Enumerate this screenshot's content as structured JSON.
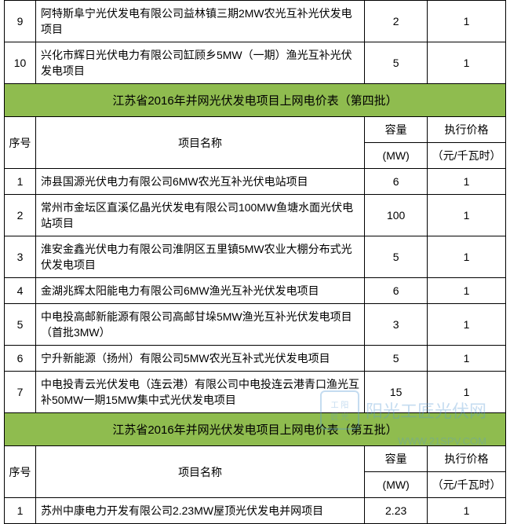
{
  "prev_rows": [
    {
      "seq": "9",
      "name": "阿特斯阜宁光伏发电有限公司益林镇三期2MW农光互补光伏发电项目",
      "cap": "2",
      "price": "1"
    },
    {
      "seq": "10",
      "name": "兴化市辉日光伏电力有限公司缸顾乡5MW（一期）渔光互补光伏发电项目",
      "cap": "5",
      "price": "1"
    }
  ],
  "section4": {
    "title": "江苏省2016年并网光伏发电项目上网电价表（第四批）",
    "headers": {
      "seq": "序号",
      "name": "项目名称",
      "cap1": "容量",
      "cap2": "(MW)",
      "price1": "执行价格",
      "price2": "（元/千瓦时）"
    },
    "rows": [
      {
        "seq": "1",
        "name": "沛县国源光伏电力有限公司6MW农光互补光伏电站项目",
        "cap": "6",
        "price": "1"
      },
      {
        "seq": "2",
        "name": "常州市金坛区直溪亿晶光伏发电有限公司100MW鱼塘水面光伏电站项目",
        "cap": "100",
        "price": "1"
      },
      {
        "seq": "3",
        "name": "淮安金鑫光伏电力有限公司淮阴区五里镇5MW农业大棚分布式光伏发电项目",
        "cap": "5",
        "price": "1"
      },
      {
        "seq": "4",
        "name": "金湖兆辉太阳能电力有限公司6MW渔光互补光伏发电项目",
        "cap": "6",
        "price": "1"
      },
      {
        "seq": "5",
        "name": "中电投高邮新能源有限公司高邮甘垛5MW渔光互补光伏发电项目（首批3MW）",
        "cap": "3",
        "price": "1"
      },
      {
        "seq": "6",
        "name": "宁升新能源（扬州）有限公司5MW农光互补式光伏发电项目",
        "cap": "5",
        "price": "1"
      },
      {
        "seq": "7",
        "name": "中电投青云光伏发电（连云港）有限公司中电投连云港青口渔光互补50MW一期15MW集中式光伏发电项目",
        "cap": "15",
        "price": "1"
      }
    ]
  },
  "section5": {
    "title": "江苏省2016年并网光伏发电项目上网电价表（第五批）",
    "headers": {
      "seq": "序号",
      "name": "项目名称",
      "cap1": "容量",
      "cap2": "(MW)",
      "price1": "执行价格",
      "price2": "（元/千瓦时）"
    },
    "rows": [
      {
        "seq": "1",
        "name": "苏州中康电力开发有限公司2.23MW屋顶光伏发电并网项目",
        "cap": "2.23",
        "price": "1"
      }
    ]
  },
  "watermark": {
    "badge1": "工 阳",
    "badge2": "匠 光",
    "text": "阳光工匠光伏网",
    "url": "WWW.21SPV.COM"
  }
}
